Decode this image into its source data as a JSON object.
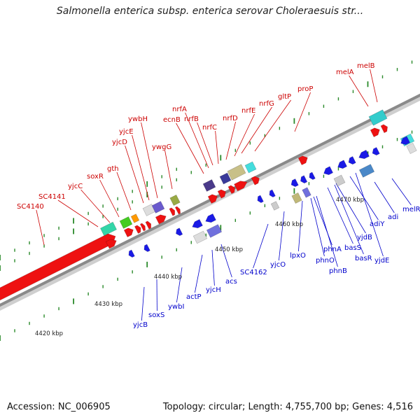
{
  "title": "Salmonella enterica subsp. enterica serovar Choleraesuis str...",
  "footer": {
    "accession": "Accession: NC_006905",
    "stats": "Topology: circular; Length: 4,755,700 bp; Genes: 4,516"
  },
  "colors": {
    "forward_label": "#cc0000",
    "reverse_label": "#0000cc",
    "forward_arrow": "#ee1111",
    "reverse_arrow": "#1a1ae6",
    "backbone": "#8a8a8a",
    "tick": "#2a8a2a"
  },
  "scale_labels": [
    "4420 kbp",
    "4430 kbp",
    "4440 kbp",
    "4450 kbp",
    "4460 kbp",
    "4470 kbp"
  ],
  "forward_labels": [
    "SC4140",
    "SC4141",
    "yjcC",
    "soxR",
    "gth",
    "yjcD",
    "yjcE",
    "ywbH",
    "ywgG",
    "ecnB",
    "nrfA",
    "nrfB",
    "nrfC",
    "nrfD",
    "nrfE",
    "nrfG",
    "gltP",
    "proP",
    "melA",
    "melB"
  ],
  "reverse_labels": [
    "yjcB",
    "soxS",
    "ywbI",
    "actP",
    "yjcH",
    "acs",
    "SC4162",
    "yjcO",
    "lpxO",
    "phnO",
    "phnB",
    "phnA",
    "basS",
    "basR",
    "yjdB",
    "adiY",
    "yjdE",
    "adi",
    "melR"
  ]
}
